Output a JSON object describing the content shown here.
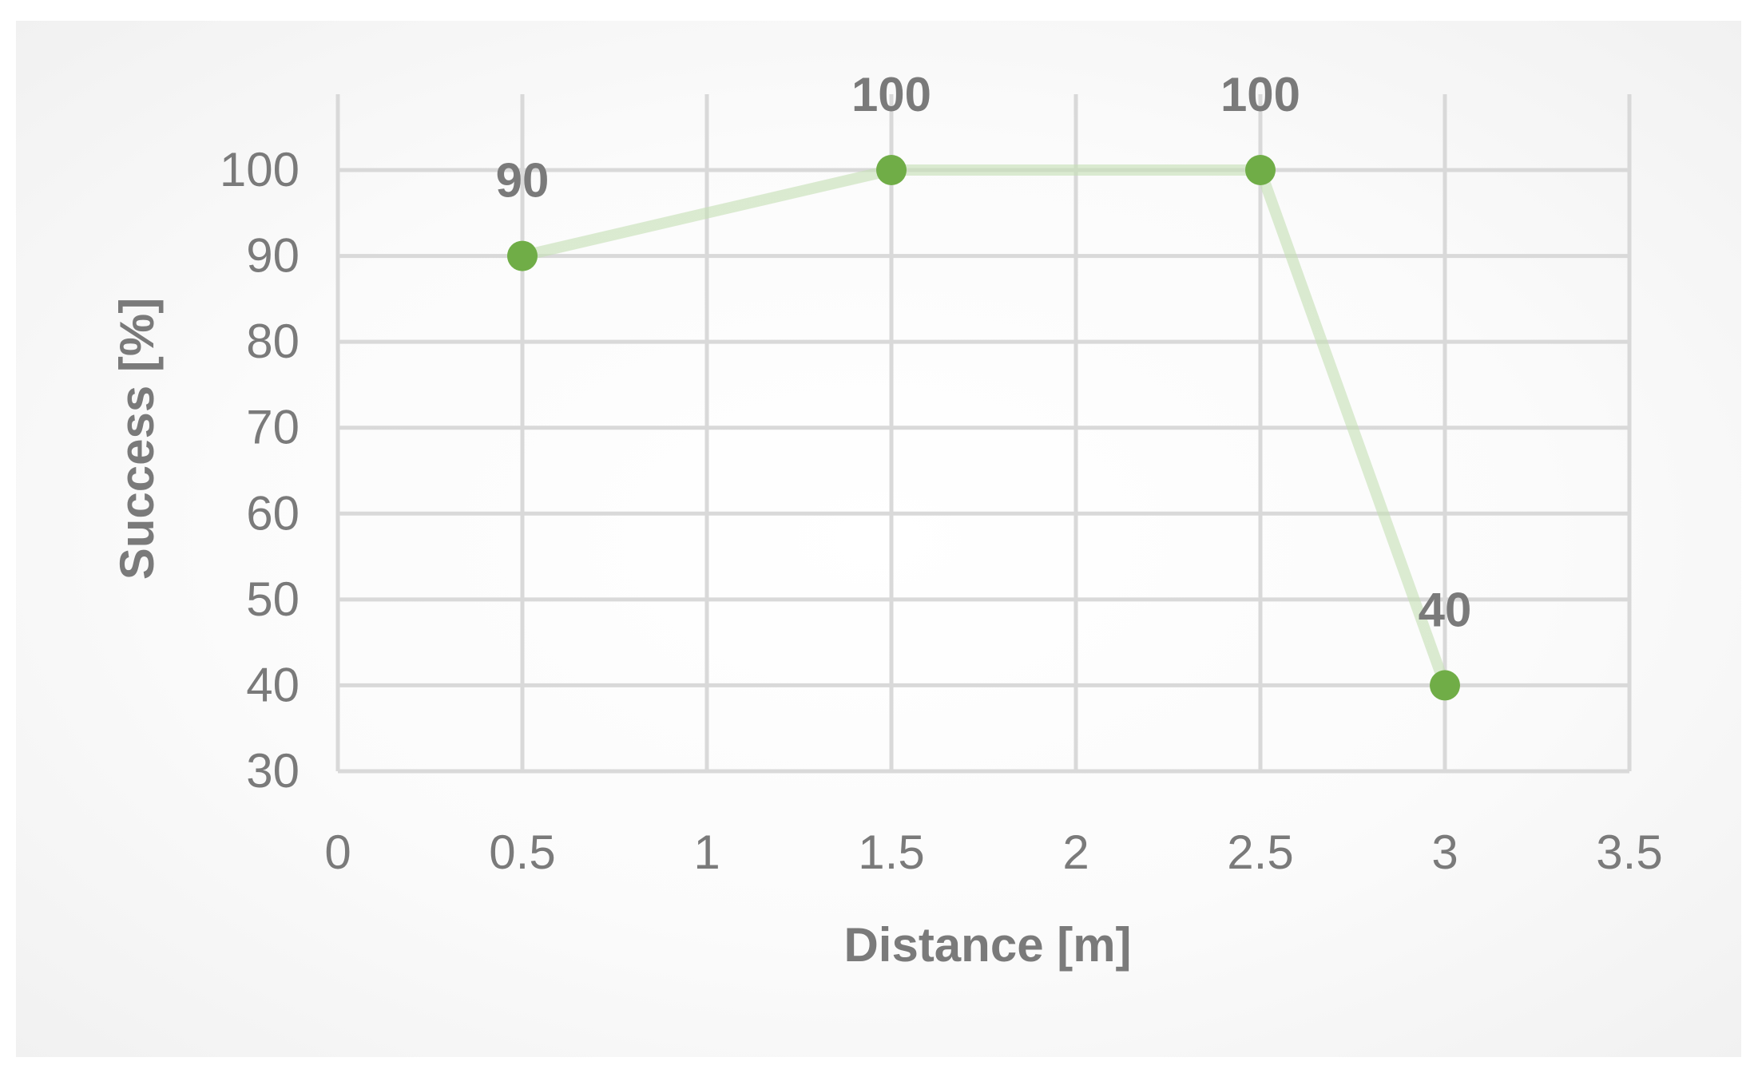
{
  "chart_data": {
    "type": "scatter",
    "title": "",
    "xlabel": "Distance [m]",
    "ylabel": "Success [%]",
    "xlim": [
      0,
      3.5
    ],
    "ylim": [
      30,
      100
    ],
    "x_ticks": [
      "0",
      "0.5",
      "1",
      "1.5",
      "2",
      "2.5",
      "3",
      "3.5"
    ],
    "x_tick_values": [
      0,
      0.5,
      1,
      1.5,
      2,
      2.5,
      3,
      3.5
    ],
    "y_ticks": [
      "30",
      "40",
      "50",
      "60",
      "70",
      "80",
      "90",
      "100"
    ],
    "y_tick_values": [
      30,
      40,
      50,
      60,
      70,
      80,
      90,
      100
    ],
    "grid": true,
    "legend": "none",
    "series": [
      {
        "x": [
          0.5,
          1.5,
          2.5,
          3
        ],
        "y": [
          90,
          100,
          100,
          40
        ],
        "data_labels": [
          "90",
          "100",
          "100",
          "40"
        ],
        "line_style": "straight",
        "marker_color": "#70ad47",
        "line_color": "#c5e0b4"
      }
    ]
  }
}
